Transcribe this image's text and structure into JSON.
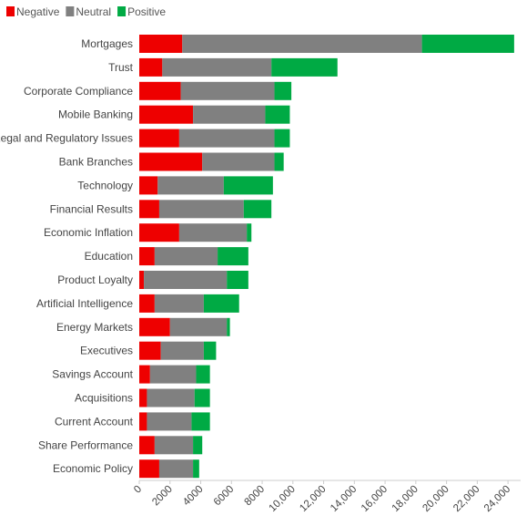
{
  "chart_data": {
    "type": "bar",
    "orientation": "horizontal",
    "stacked": true,
    "categories": [
      "Mortgages",
      "Trust",
      "Corporate Compliance",
      "Mobile Banking",
      "Legal and Regulatory Issues",
      "Bank Branches",
      "Technology",
      "Financial Results",
      "Economic Inflation",
      "Education",
      "Product Loyalty",
      "Artificial Intelligence",
      "Energy Markets",
      "Executives",
      "Savings Account",
      "Acquisitions",
      "Current Account",
      "Share Performance",
      "Economic Policy"
    ],
    "series": [
      {
        "name": "Negative",
        "color": "#ee0000",
        "values": [
          2800,
          1500,
          2700,
          3500,
          2600,
          4100,
          1200,
          1300,
          2600,
          1000,
          300,
          1000,
          2000,
          1400,
          700,
          500,
          500,
          1000,
          1300
        ]
      },
      {
        "name": "Neutral",
        "color": "#808080",
        "values": [
          15600,
          7100,
          6100,
          4700,
          6200,
          4700,
          4300,
          5500,
          4400,
          4100,
          5400,
          3200,
          3700,
          2800,
          3000,
          3100,
          2900,
          2500,
          2200
        ]
      },
      {
        "name": "Positive",
        "color": "#00aa44",
        "values": [
          6000,
          4300,
          1100,
          1600,
          1000,
          600,
          3200,
          1800,
          300,
          2000,
          1400,
          2300,
          200,
          800,
          900,
          1000,
          1200,
          600,
          400
        ]
      }
    ],
    "x_ticks": [
      "0",
      "2000",
      "4000",
      "6000",
      "8000",
      "10,000",
      "12,000",
      "14,000",
      "16,000",
      "18,000",
      "20,000",
      "22,000",
      "24,000"
    ],
    "x_tick_values": [
      0,
      2000,
      4000,
      6000,
      8000,
      10000,
      12000,
      14000,
      16000,
      18000,
      20000,
      22000,
      24000
    ],
    "xlim": [
      0,
      25000
    ],
    "legend_position": "top-left",
    "grid": false
  }
}
